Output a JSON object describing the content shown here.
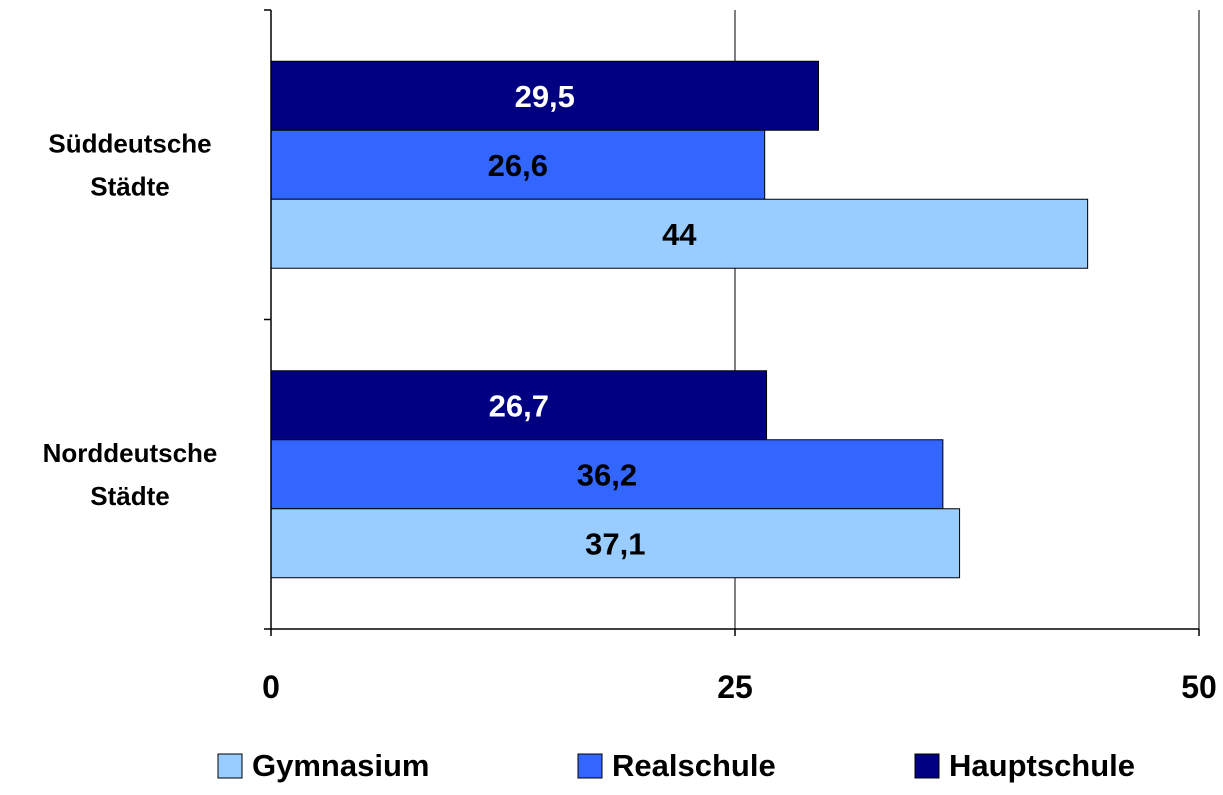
{
  "chart_data": {
    "type": "bar",
    "orientation": "horizontal",
    "categories": [
      "Süddeutsche Städte",
      "Norddeutsche Städte"
    ],
    "category_lines": [
      [
        "Süddeutsche",
        "Städte"
      ],
      [
        "Norddeutsche",
        "Städte"
      ]
    ],
    "series": [
      {
        "name": "Hauptschule",
        "color": "#000080",
        "label_color": "#ffffff",
        "values": [
          29.5,
          26.7
        ],
        "labels": [
          "29,5",
          "26,7"
        ]
      },
      {
        "name": "Realschule",
        "color": "#3366ff",
        "label_color": "#000000",
        "values": [
          26.6,
          36.2
        ],
        "labels": [
          "26,6",
          "36,2"
        ]
      },
      {
        "name": "Gymnasium",
        "color": "#99ccff",
        "label_color": "#000000",
        "values": [
          44,
          37.1
        ],
        "labels": [
          "44",
          "37,1"
        ]
      }
    ],
    "legend_order": [
      "Gymnasium",
      "Realschule",
      "Hauptschule"
    ],
    "legend_position": "bottom",
    "xlim": [
      0,
      50
    ],
    "xticks": [
      0,
      25,
      50
    ],
    "xtick_labels": [
      "0",
      "25",
      "50"
    ],
    "grid": true,
    "title": "",
    "xlabel": "",
    "ylabel": ""
  }
}
